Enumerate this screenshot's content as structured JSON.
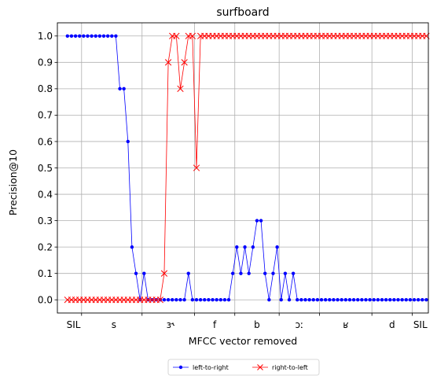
{
  "chart_data": {
    "type": "line",
    "title": "surfboard",
    "xlabel": "MFCC vector removed",
    "ylabel": "Precision@10",
    "ylim": [
      -0.05,
      1.05
    ],
    "yticks": [
      0.0,
      0.1,
      0.2,
      0.3,
      0.4,
      0.5,
      0.6,
      0.7,
      0.8,
      0.9,
      1.0
    ],
    "ytick_labels": [
      "0.0",
      "0.1",
      "0.2",
      "0.3",
      "0.4",
      "0.5",
      "0.6",
      "0.7",
      "0.8",
      "0.9",
      "1.0"
    ],
    "xlim": [
      -2.5,
      89.5
    ],
    "phone_boundaries": [
      3.5,
      18.5,
      31.5,
      41.5,
      52.5,
      62.5,
      75.5,
      85.5
    ],
    "phone_labels": [
      {
        "label": "SIL",
        "x": 1.5
      },
      {
        "label": "s",
        "x": 11.5
      },
      {
        "label": "ɜ˞",
        "x": 25.5
      },
      {
        "label": "f",
        "x": 36.5
      },
      {
        "label": "b",
        "x": 47
      },
      {
        "label": "ɔː",
        "x": 57.5
      },
      {
        "label": "ʁ",
        "x": 69
      },
      {
        "label": "d",
        "x": 80.5
      },
      {
        "label": "SIL",
        "x": 87.5
      }
    ],
    "grid": true,
    "legend_position": "below",
    "series": [
      {
        "name": "left-to-right",
        "color": "#0000ff",
        "marker": "circle",
        "values": [
          1,
          1,
          1,
          1,
          1,
          1,
          1,
          1,
          1,
          1,
          1,
          1,
          1,
          0.8,
          0.8,
          0.6,
          0.2,
          0.1,
          0,
          0.1,
          0,
          0,
          0,
          0,
          0,
          0,
          0,
          0,
          0,
          0,
          0.1,
          0,
          0,
          0,
          0,
          0,
          0,
          0,
          0,
          0,
          0,
          0.1,
          0.2,
          0.1,
          0.2,
          0.1,
          0.2,
          0.3,
          0.3,
          0.1,
          0,
          0.1,
          0.2,
          0,
          0.1,
          0,
          0.1,
          0,
          0,
          0,
          0,
          0,
          0,
          0,
          0,
          0,
          0,
          0,
          0,
          0,
          0,
          0,
          0,
          0,
          0,
          0,
          0,
          0,
          0,
          0,
          0,
          0,
          0,
          0,
          0,
          0,
          0,
          0,
          0,
          0
        ]
      },
      {
        "name": "right-to-left",
        "color": "#ff0000",
        "marker": "x",
        "values": [
          0,
          0,
          0,
          0,
          0,
          0,
          0,
          0,
          0,
          0,
          0,
          0,
          0,
          0,
          0,
          0,
          0,
          0,
          0,
          0,
          0,
          0,
          0,
          0,
          0.1,
          0.9,
          1,
          1,
          0.8,
          0.9,
          1,
          1,
          0.5,
          1,
          1,
          1,
          1,
          1,
          1,
          1,
          1,
          1,
          1,
          1,
          1,
          1,
          1,
          1,
          1,
          1,
          1,
          1,
          1,
          1,
          1,
          1,
          1,
          1,
          1,
          1,
          1,
          1,
          1,
          1,
          1,
          1,
          1,
          1,
          1,
          1,
          1,
          1,
          1,
          1,
          1,
          1,
          1,
          1,
          1,
          1,
          1,
          1,
          1,
          1,
          1,
          1,
          1,
          1,
          1,
          1
        ]
      }
    ]
  }
}
